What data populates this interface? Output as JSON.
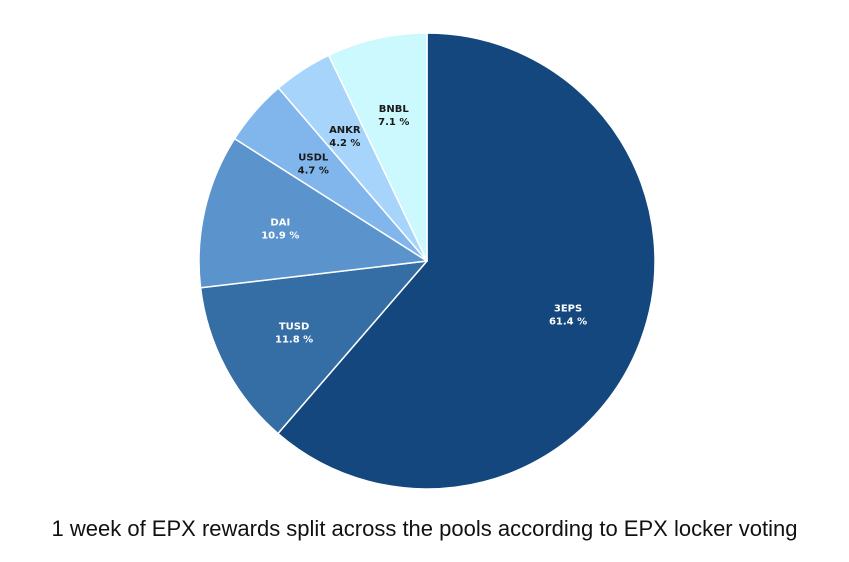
{
  "chart_data": {
    "type": "pie",
    "title": "",
    "caption": "1 week of EPX rewards split across the pools according to EPX locker voting",
    "slices": [
      {
        "label": "3EPS",
        "value": 61.4,
        "value_label": "61.4 %",
        "color": "#13477d",
        "label_color": "#ffffff"
      },
      {
        "label": "TUSD",
        "value": 11.8,
        "value_label": "11.8 %",
        "color": "#356ea5",
        "label_color": "#ffffff"
      },
      {
        "label": "DAI",
        "value": 10.9,
        "value_label": "10.9 %",
        "color": "#5b93cd",
        "label_color": "#ffffff"
      },
      {
        "label": "USDL",
        "value": 4.7,
        "value_label": "4.7 %",
        "color": "#80b6ec",
        "label_color": "#1a1a1a"
      },
      {
        "label": "ANKR",
        "value": 4.2,
        "value_label": "4.2 %",
        "color": "#a6d4fb",
        "label_color": "#1a1a1a"
      },
      {
        "label": "BNBL",
        "value": 7.1,
        "value_label": "7.1 %",
        "color": "#cbf9fe",
        "label_color": "#1a1a1a"
      }
    ],
    "start_angle_deg": 0,
    "direction": "clockwise",
    "legend": "none"
  }
}
